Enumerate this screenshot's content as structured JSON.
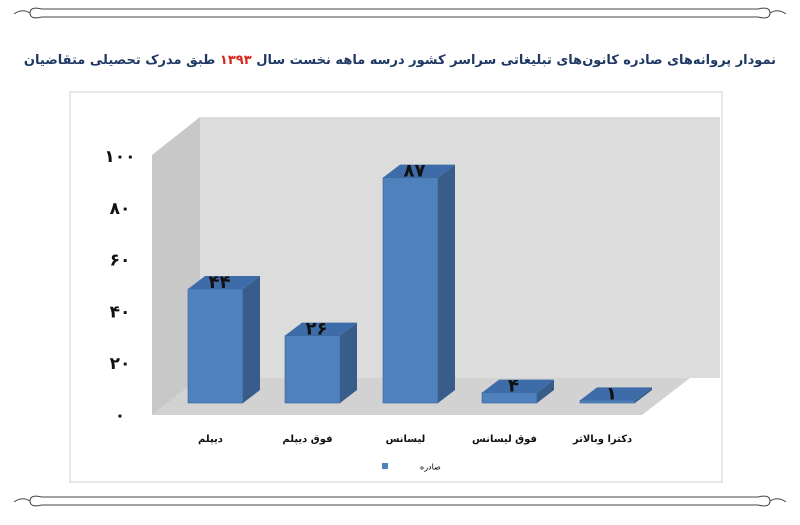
{
  "chart_data": {
    "type": "bar3d",
    "title": [
      "نمودار پروانه‌های صادره کانون‌های تبلیغاتی سراسر کشور درسه ماهه نخست سال ",
      "۱۳۹۳",
      " طبق مدرک تحصیلی متقاضیان"
    ],
    "title_colors": [
      "#1f3864",
      "#d9261c",
      "#1f3864"
    ],
    "categories": [
      "دیپلم",
      "فوق دیپلم",
      "لیسانس",
      "فوق لیسانس",
      "دکترا وبالاتر"
    ],
    "series": [
      {
        "name": "صادره",
        "color": "#4f81bd",
        "values": [
          44,
          26,
          87,
          4,
          1
        ],
        "value_labels": [
          "۴۴",
          "۲۶",
          "۸۷",
          "۴",
          "۱"
        ]
      }
    ],
    "ylim": [
      0,
      100
    ],
    "yticks": [
      {
        "value": 0,
        "label": "۰"
      },
      {
        "value": 20,
        "label": "۲۰"
      },
      {
        "value": 40,
        "label": "۴۰"
      },
      {
        "value": 60,
        "label": "۶۰"
      },
      {
        "value": 80,
        "label": "۸۰"
      },
      {
        "value": 100,
        "label": "۱۰۰"
      }
    ],
    "grid": false
  }
}
